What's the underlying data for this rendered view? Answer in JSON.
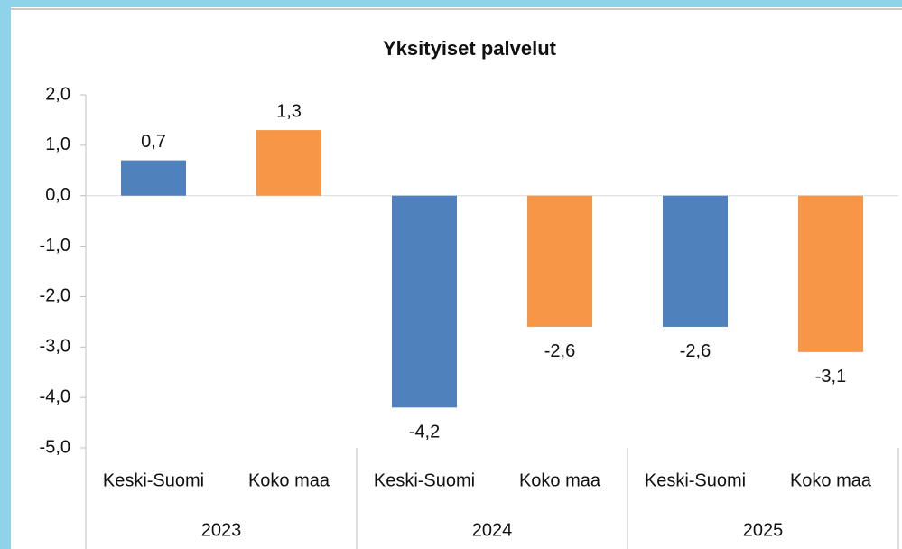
{
  "chart_data": {
    "type": "bar",
    "title": "Yksityiset palvelut",
    "categories": [
      "2023",
      "2024",
      "2025"
    ],
    "series": [
      {
        "name": "Keski-Suomi",
        "color": "#4f81bd",
        "values": [
          0.7,
          -4.2,
          -2.6
        ],
        "value_labels": [
          "0,7",
          "-4,2",
          "-2,6"
        ]
      },
      {
        "name": "Koko maa",
        "color": "#f79646",
        "values": [
          1.3,
          -2.6,
          -3.1
        ],
        "value_labels": [
          "1,3",
          "-2,6",
          "-3,1"
        ]
      }
    ],
    "ylim": [
      -5,
      2
    ],
    "yticks": [
      {
        "value": 2,
        "label": "2,0"
      },
      {
        "value": 1,
        "label": "1,0"
      },
      {
        "value": 0,
        "label": "0,0"
      },
      {
        "value": -1,
        "label": "-1,0"
      },
      {
        "value": -2,
        "label": "-2,0"
      },
      {
        "value": -3,
        "label": "-3,0"
      },
      {
        "value": -4,
        "label": "-4,0"
      },
      {
        "value": -5,
        "label": "-5,0"
      }
    ],
    "grid": false
  }
}
